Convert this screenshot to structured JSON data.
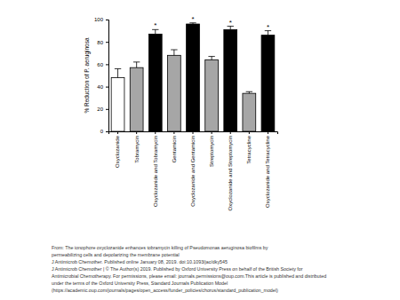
{
  "chart_data": {
    "type": "bar",
    "y_label": "% Reduction of P. aeruginosa",
    "categories": [
      "Oxyclozanide",
      "Tobramycin",
      "Oxyclozanide and Tobramycin",
      "Gentamicin",
      "Oxyclozanide and Gentamicin",
      "Streptomycin",
      "Oxyclozanide and Streptomycin",
      "Tetracycline",
      "Oxyclozanide and Tetracycline"
    ],
    "values": [
      48,
      57,
      87,
      68,
      96,
      64,
      91,
      34,
      86
    ],
    "errors": [
      8,
      5,
      4,
      5,
      1,
      3,
      3,
      1.5,
      4
    ],
    "significance": [
      null,
      null,
      "*",
      null,
      "*",
      null,
      "*",
      null,
      "*"
    ],
    "colors": [
      "#ffffff",
      "#a6a6a6",
      "#000000",
      "#a6a6a6",
      "#000000",
      "#a6a6a6",
      "#000000",
      "#a6a6a6",
      "#000000"
    ],
    "ylim": [
      0,
      100
    ],
    "yticks": [
      0,
      20,
      40,
      60,
      80,
      100
    ],
    "grid": false,
    "annotations": [
      "From: The ionophore oxyclozanide enhances tobramycin killing of Pseudomonas aeruginosa biofilms by",
      "permeabilizing cells and depolarizing the membrane potential",
      "J Antimicrob Chemother. Published online January 08, 2019. doi:10.1093/jac/dky545",
      "J Antimicrob Chemother | © The Author(s) 2019. Published by Oxford University Press on behalf of the British Society for",
      "Antimicrobial Chemotherapy. For permissions, please email: journals.permissions@oup.com.This article is published and distributed",
      "under the terms of the Oxford University Press, Standard Journals Publication Model",
      "(https://academic.oup.com/journals/pages/open_access/funder_policies/chorus/standard_publication_model)"
    ]
  }
}
